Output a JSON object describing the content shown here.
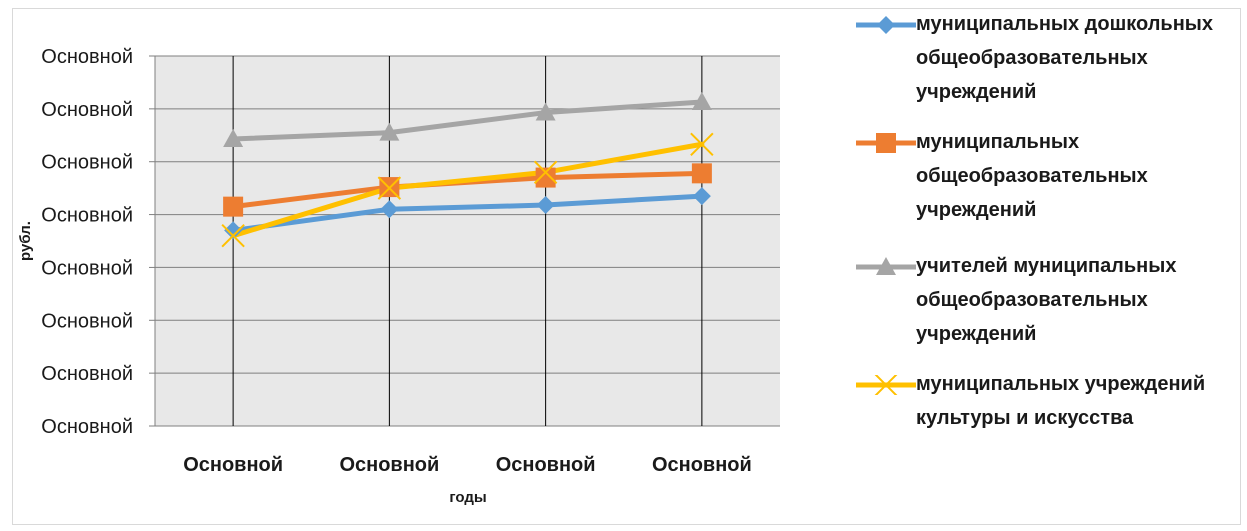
{
  "chart_data": {
    "type": "line",
    "categories": [
      "Основной",
      "Основной",
      "Основной",
      "Основной"
    ],
    "xlabel": "годы",
    "ylabel": "рубл.",
    "ytick_labels": [
      "Основной",
      "Основной",
      "Основной",
      "Основной",
      "Основной",
      "Основной",
      "Основной",
      "Основной"
    ],
    "ylim": [
      0,
      7
    ],
    "grid": true,
    "legend_position": "right",
    "series": [
      {
        "name": "муниципальных дошкольных общеобразовательных учреждений",
        "color": "#5B9BD5",
        "marker": "diamond",
        "values": [
          3.7,
          4.1,
          4.18,
          4.35
        ]
      },
      {
        "name": "муниципальных общеобразовательных учреждений",
        "color": "#ED7D31",
        "marker": "square",
        "values": [
          4.15,
          4.52,
          4.7,
          4.78
        ]
      },
      {
        "name": "учителей муниципальных общеобразовательных учреждений",
        "color": "#A5A5A5",
        "marker": "triangle",
        "values": [
          5.43,
          5.55,
          5.93,
          6.13
        ]
      },
      {
        "name": "муниципальных учреждений культуры и искусства",
        "color": "#FFC000",
        "marker": "x",
        "values": [
          3.6,
          4.5,
          4.8,
          5.33
        ]
      }
    ]
  }
}
